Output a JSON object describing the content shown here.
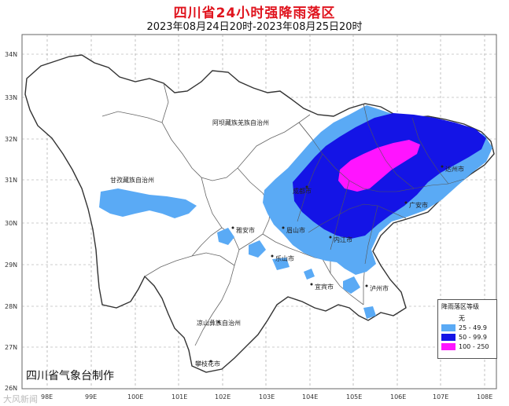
{
  "title": "四川省24小时强降雨落区",
  "subtitle": "2023年08月24日20时-2023年08月25日20时",
  "credit": "四川省气象台制作",
  "watermark": "大风新闻",
  "latitudes": [
    "34N",
    "33N",
    "32N",
    "31N",
    "30N",
    "29N",
    "28N",
    "27N",
    "26N"
  ],
  "longitudes": [
    "98E",
    "99E",
    "100E",
    "101E",
    "102E",
    "103E",
    "104E",
    "105E",
    "106E",
    "107E",
    "108E"
  ],
  "places": {
    "aba": "阿坝藏族羌族自治州",
    "ganzi": "甘孜藏族自治州",
    "liangshan": "凉山彝族自治州",
    "panzhihua": "攀枝花市",
    "chengdu": "成都市",
    "yaan": "雅安市",
    "meishan": "眉山市",
    "leshan": "乐山市",
    "neijiang": "内江市",
    "yibin": "宜宾市",
    "luzhou": "泸州市",
    "dazhou": "达州市",
    "guangan": "广安市"
  },
  "legend": {
    "title": "降雨落区等级",
    "items": [
      {
        "label": "无",
        "color": ""
      },
      {
        "label": "25 - 49.9",
        "color": "#5aaaf5"
      },
      {
        "label": "50 - 99.9",
        "color": "#1414e6"
      },
      {
        "label": "100 - 250",
        "color": "#ff14ff"
      }
    ]
  },
  "colors": {
    "title": "#e0141e",
    "rain_25_50": "#5aaaf5",
    "rain_50_100": "#1414e6",
    "rain_100_250": "#ff14ff",
    "province_fill": "#ffffff",
    "border": "#333333"
  }
}
